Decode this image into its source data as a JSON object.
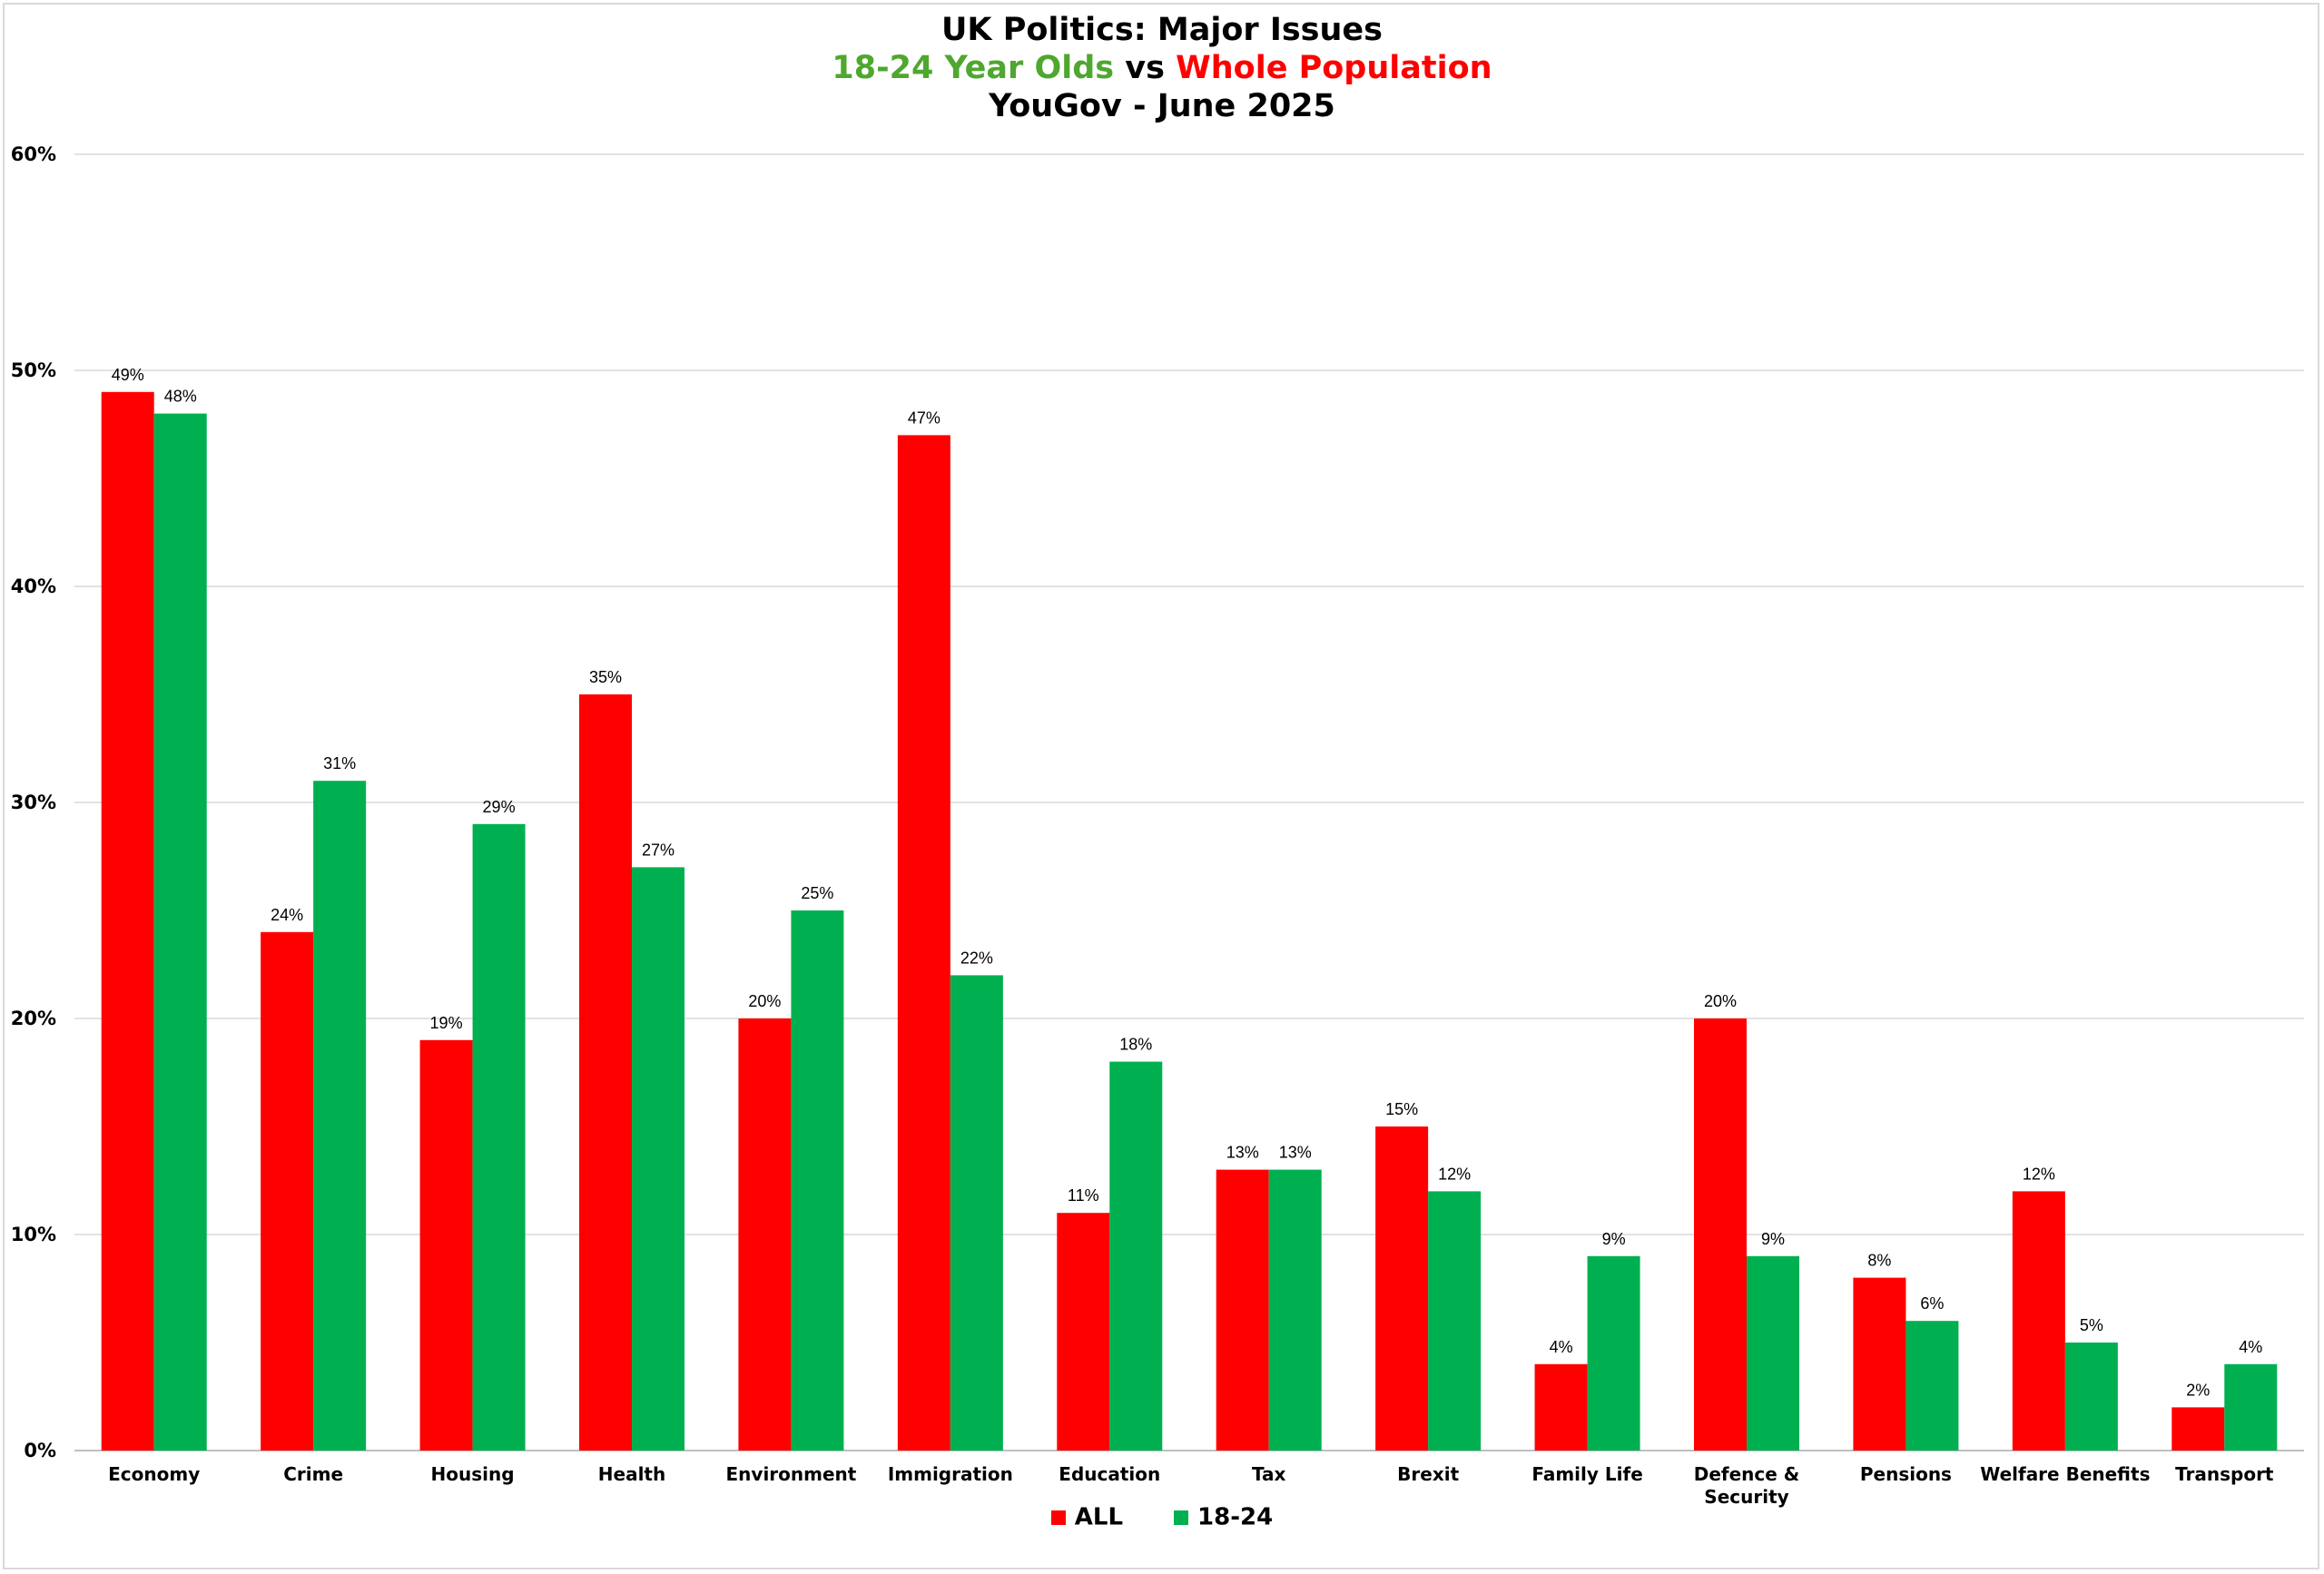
{
  "chart_data": {
    "type": "bar",
    "title": "UK Politics: Major Issues",
    "subtitle": {
      "part1": "18-24 Year Olds",
      "connector": "vs",
      "part2": "Whole Population"
    },
    "subtitle2": "YouGov - June 2025",
    "categories": [
      "Economy",
      "Crime",
      "Housing",
      "Health",
      "Environment",
      "Immigration",
      "Education",
      "Tax",
      "Brexit",
      "Family Life",
      "Defence & Security",
      "Pensions",
      "Welfare Benefits",
      "Transport"
    ],
    "category_lines": [
      [
        "Economy"
      ],
      [
        "Crime"
      ],
      [
        "Housing"
      ],
      [
        "Health"
      ],
      [
        "Environment"
      ],
      [
        "Immigration"
      ],
      [
        "Education"
      ],
      [
        "Tax"
      ],
      [
        "Brexit"
      ],
      [
        "Family Life"
      ],
      [
        "Defence &",
        "Security"
      ],
      [
        "Pensions"
      ],
      [
        "Welfare Benefits"
      ],
      [
        "Transport"
      ]
    ],
    "series": [
      {
        "name": "ALL",
        "color": "#ff0000",
        "values": [
          49,
          24,
          19,
          35,
          20,
          47,
          11,
          13,
          15,
          4,
          20,
          8,
          12,
          2
        ]
      },
      {
        "name": "18-24",
        "color": "#00b050",
        "values": [
          48,
          31,
          29,
          27,
          25,
          22,
          18,
          13,
          12,
          9,
          9,
          6,
          5,
          4
        ]
      }
    ],
    "ylim": [
      0,
      60
    ],
    "yticks": [
      0,
      10,
      20,
      30,
      40,
      50,
      60
    ],
    "ytick_labels": [
      "0%",
      "10%",
      "20%",
      "30%",
      "40%",
      "50%",
      "60%"
    ],
    "value_suffix": "%",
    "grid": true,
    "legend_position": "bottom",
    "title_colors": {
      "part1": "#4ea72e",
      "part2": "#ff0000"
    }
  }
}
